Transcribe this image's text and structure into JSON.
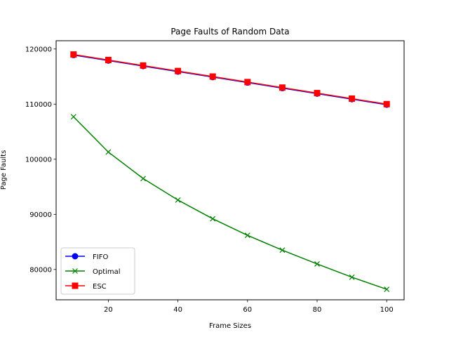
{
  "chart_data": {
    "type": "line",
    "title": "Page Faults of Random Data",
    "xlabel": "Frame Sizes",
    "ylabel": "Page Faults",
    "x": [
      10,
      20,
      30,
      40,
      50,
      60,
      70,
      80,
      90,
      100
    ],
    "xlim": [
      5,
      105
    ],
    "ylim": [
      74500,
      121500
    ],
    "xticks": [
      20,
      40,
      60,
      80,
      100
    ],
    "yticks": [
      80000,
      90000,
      100000,
      110000,
      120000
    ],
    "grid": false,
    "legend_position": "lower-left",
    "series": [
      {
        "name": "FIFO",
        "color": "#0000ff",
        "marker": "circle",
        "values": [
          118900,
          117900,
          116900,
          115900,
          114900,
          113900,
          112900,
          111900,
          110900,
          109900
        ]
      },
      {
        "name": "Optimal",
        "color": "#008000",
        "marker": "x",
        "values": [
          107700,
          101300,
          96500,
          92600,
          89200,
          86200,
          83500,
          81000,
          78600,
          76400
        ]
      },
      {
        "name": "ESC",
        "color": "#ff0000",
        "marker": "square",
        "values": [
          119000,
          118000,
          117000,
          116000,
          115000,
          114000,
          113000,
          112000,
          111000,
          110000
        ]
      }
    ]
  }
}
